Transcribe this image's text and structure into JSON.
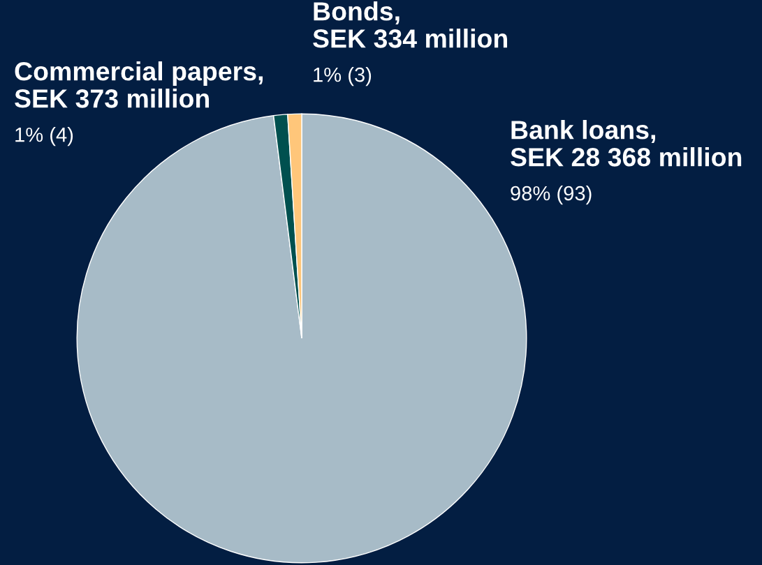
{
  "chart_data": {
    "type": "pie",
    "categories": [
      "Bank loans,\nSEK 28 368 million",
      "Commercial papers,\nSEK 373 million",
      "Bonds,\nSEK 334 million"
    ],
    "values": [
      98,
      1,
      1
    ],
    "colors": [
      "#a7bbc7",
      "#00504f",
      "#ffc67a"
    ],
    "value_labels": [
      "98% (93)",
      "1% (4)",
      "1% (3)"
    ]
  }
}
